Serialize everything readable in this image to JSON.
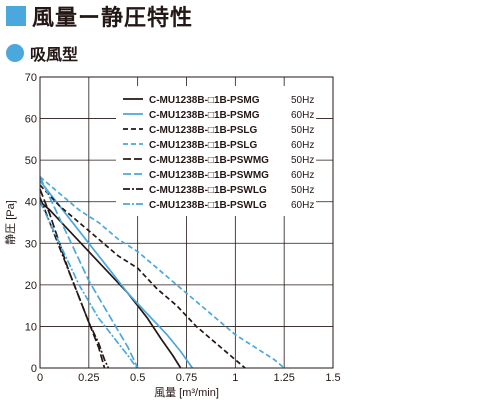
{
  "header": {
    "title": "風量ー静圧特性",
    "subtitle": "吸風型"
  },
  "colors": {
    "accent": "#4aa8dc",
    "black": "#231815",
    "blue": "#4aa8dc"
  },
  "chart_data": {
    "type": "line",
    "title": "",
    "xlabel": "風量 [m³/min]",
    "ylabel": "静圧 [Pa]",
    "xlim": [
      0,
      1.5
    ],
    "ylim": [
      0,
      70
    ],
    "xticks": [
      0,
      0.25,
      0.5,
      0.75,
      1,
      1.25,
      1.5
    ],
    "xtick_labels": [
      "0",
      "0.25",
      "0.5",
      "0.75",
      "1",
      "1.25",
      "1.5"
    ],
    "yticks": [
      0,
      10,
      20,
      30,
      40,
      50,
      60,
      70
    ],
    "ytick_labels": [
      "0",
      "10",
      "20",
      "30",
      "40",
      "50",
      "60",
      "70"
    ],
    "grid": true,
    "legend_position": "top-right",
    "series": [
      {
        "name": "C-MU1238B-□1B-PSMG",
        "freq": "50Hz",
        "color": "black",
        "dash": "solid",
        "x": [
          0,
          0.05,
          0.15,
          0.25,
          0.35,
          0.45,
          0.55,
          0.62,
          0.68,
          0.72
        ],
        "y": [
          40,
          38,
          33,
          28,
          23,
          18,
          12,
          7,
          3,
          0
        ]
      },
      {
        "name": "C-MU1238B-□1B-PSMG",
        "freq": "60Hz",
        "color": "blue",
        "dash": "solid",
        "x": [
          0,
          0.05,
          0.15,
          0.25,
          0.35,
          0.45,
          0.55,
          0.65,
          0.72,
          0.78
        ],
        "y": [
          45,
          42,
          36,
          30,
          24,
          18,
          13,
          8,
          4,
          0
        ]
      },
      {
        "name": "C-MU1238B-□1B-PSLG",
        "freq": "50Hz",
        "color": "black",
        "dash": "dashed",
        "x": [
          0,
          0.1,
          0.2,
          0.3,
          0.4,
          0.5,
          0.6,
          0.7,
          0.8,
          0.9,
          1.0,
          1.05
        ],
        "y": [
          44,
          39,
          35,
          31,
          27,
          24,
          19,
          15,
          10,
          6,
          2,
          0
        ]
      },
      {
        "name": "C-MU1238B-□1B-PSLG",
        "freq": "60Hz",
        "color": "blue",
        "dash": "dashed",
        "x": [
          0,
          0.1,
          0.2,
          0.3,
          0.4,
          0.5,
          0.6,
          0.7,
          0.8,
          0.9,
          1.0,
          1.1,
          1.2,
          1.25
        ],
        "y": [
          46,
          42,
          38,
          35,
          31,
          28,
          24,
          20,
          16,
          12,
          8,
          5,
          2,
          0
        ]
      },
      {
        "name": "C-MU1238B-□1B-PSWMG",
        "freq": "50Hz",
        "color": "black",
        "dash": "longdash",
        "x": [
          0,
          0.05,
          0.1,
          0.15,
          0.2,
          0.25,
          0.3,
          0.33
        ],
        "y": [
          43,
          37,
          30,
          23,
          17,
          11,
          5,
          0
        ]
      },
      {
        "name": "C-MU1238B-□1B-PSWMG",
        "freq": "60Hz",
        "color": "blue",
        "dash": "longdash",
        "x": [
          0,
          0.05,
          0.1,
          0.15,
          0.2,
          0.25,
          0.3,
          0.35,
          0.4,
          0.45,
          0.48,
          0.5
        ],
        "y": [
          46,
          41,
          36,
          31,
          26,
          21,
          17,
          13,
          9,
          5,
          2,
          0
        ]
      },
      {
        "name": "C-MU1238B-□1B-PSWLG",
        "freq": "50Hz",
        "color": "black",
        "dash": "dashdot",
        "x": [
          0,
          0.05,
          0.1,
          0.15,
          0.2,
          0.25,
          0.3,
          0.33,
          0.35
        ],
        "y": [
          41,
          35,
          29,
          23,
          17,
          11,
          6,
          2,
          0
        ]
      },
      {
        "name": "C-MU1238B-□1B-PSWLG",
        "freq": "60Hz",
        "color": "blue",
        "dash": "dashdot",
        "x": [
          0,
          0.05,
          0.1,
          0.15,
          0.2,
          0.25,
          0.3,
          0.35,
          0.4,
          0.45,
          0.48,
          0.5
        ],
        "y": [
          40,
          35,
          30,
          25,
          20,
          16,
          12,
          9,
          6,
          3,
          1,
          0
        ]
      }
    ]
  }
}
